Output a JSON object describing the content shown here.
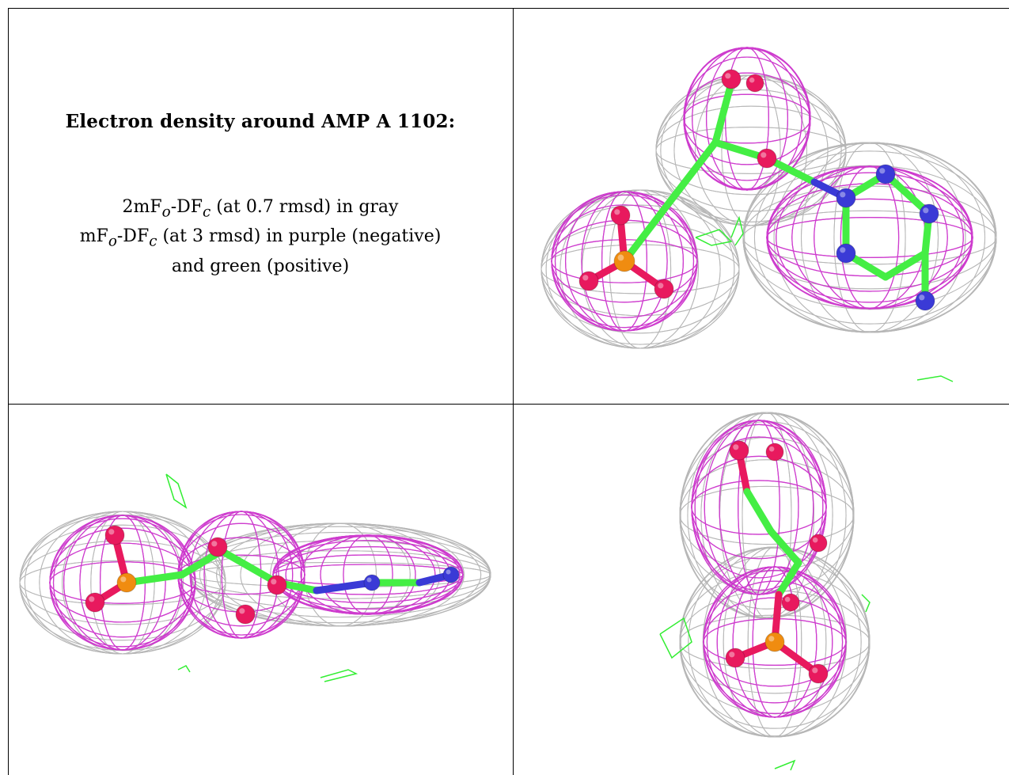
{
  "caption": {
    "title": "Electron density around AMP A 1102:",
    "line1": {
      "prefix": "2mF",
      "sub1": "o",
      "mid": "-DF",
      "sub2": "c",
      "suffix": " (at 0.7 rmsd) in gray"
    },
    "line2": {
      "prefix": "mF",
      "sub1": "o",
      "mid": "-DF",
      "sub2": "c",
      "suffix": " (at 3 rmsd) in purple (negative)"
    },
    "line3": "and green (positive)"
  },
  "colors": {
    "mesh_2fofc": "#b4b4b4",
    "mesh_fofc_negative": "#cc33cc",
    "mesh_fofc_positive": "#33ee33",
    "carbon": "#44ee44",
    "oxygen": "#e8195e",
    "nitrogen": "#3a3ad6",
    "phosphorus": "#f08c10"
  },
  "icons": {
    "top_right": "density-view-front-icon",
    "bottom_left": "density-view-side-icon",
    "bottom_right": "density-view-top-icon"
  }
}
